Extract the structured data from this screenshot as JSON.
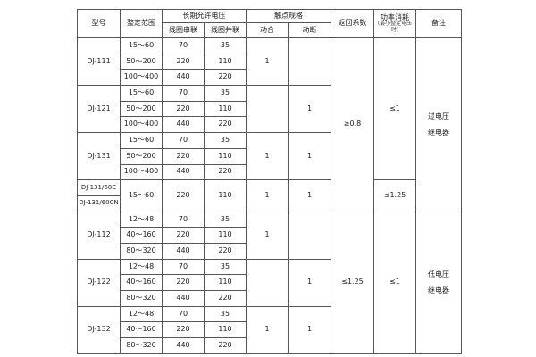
{
  "header": {
    "model": "型号",
    "range": "整定范围",
    "voltage": "长期允许电压",
    "series": "线圈串联",
    "parallel": "线圈并联",
    "contacts": "触点规格",
    "make": "动合",
    "break": "动断",
    "return_ratio": "返回系数",
    "power": "功率消耗",
    "power_note": "(最小整定电压时)",
    "remark": "备注"
  },
  "groups": [
    {
      "model": "DJ-111",
      "rows": [
        [
          "15～60",
          "70",
          "35"
        ],
        [
          "50～200",
          "220",
          "110"
        ],
        [
          "100～400",
          "440",
          "220"
        ]
      ],
      "make": "1",
      "break": ""
    },
    {
      "model": "DJ-121",
      "rows": [
        [
          "15～60",
          "70",
          "35"
        ],
        [
          "50～200",
          "220",
          "110"
        ],
        [
          "100～400",
          "440",
          "220"
        ]
      ],
      "make": "",
      "break": "1"
    },
    {
      "model": "DJ-131",
      "rows": [
        [
          "15～60",
          "70",
          "35"
        ],
        [
          "50～200",
          "220",
          "110"
        ],
        [
          "100～400",
          "440",
          "220"
        ]
      ],
      "make": "1",
      "break": "1"
    },
    {
      "models": [
        "DJ-131/60C",
        "DJ-131/60CN"
      ],
      "rows": [
        [
          "15～60",
          "220",
          "110"
        ]
      ],
      "make": "1",
      "break": "1"
    },
    {
      "model": "DJ-112",
      "rows": [
        [
          "12～48",
          "70",
          "35"
        ],
        [
          "40～160",
          "220",
          "110"
        ],
        [
          "80～320",
          "440",
          "220"
        ]
      ],
      "make": "1",
      "break": ""
    },
    {
      "model": "DJ-122",
      "rows": [
        [
          "12～48",
          "70",
          "35"
        ],
        [
          "40～160",
          "220",
          "110"
        ],
        [
          "80～320",
          "440",
          "220"
        ]
      ],
      "make": "",
      "break": "1"
    },
    {
      "model": "DJ-132",
      "rows": [
        [
          "12～48",
          "70",
          "35"
        ],
        [
          "40～160",
          "220",
          "110"
        ],
        [
          "80～320",
          "440",
          "220"
        ]
      ],
      "make": "1",
      "break": "1"
    }
  ],
  "return_ratio": [
    "≥0.8",
    "≤1.25"
  ],
  "power": [
    "≤1",
    "≤1.25",
    "≤1"
  ],
  "remarks": [
    [
      "过电压",
      "继电器"
    ],
    [
      "低电压",
      "继电器"
    ]
  ]
}
